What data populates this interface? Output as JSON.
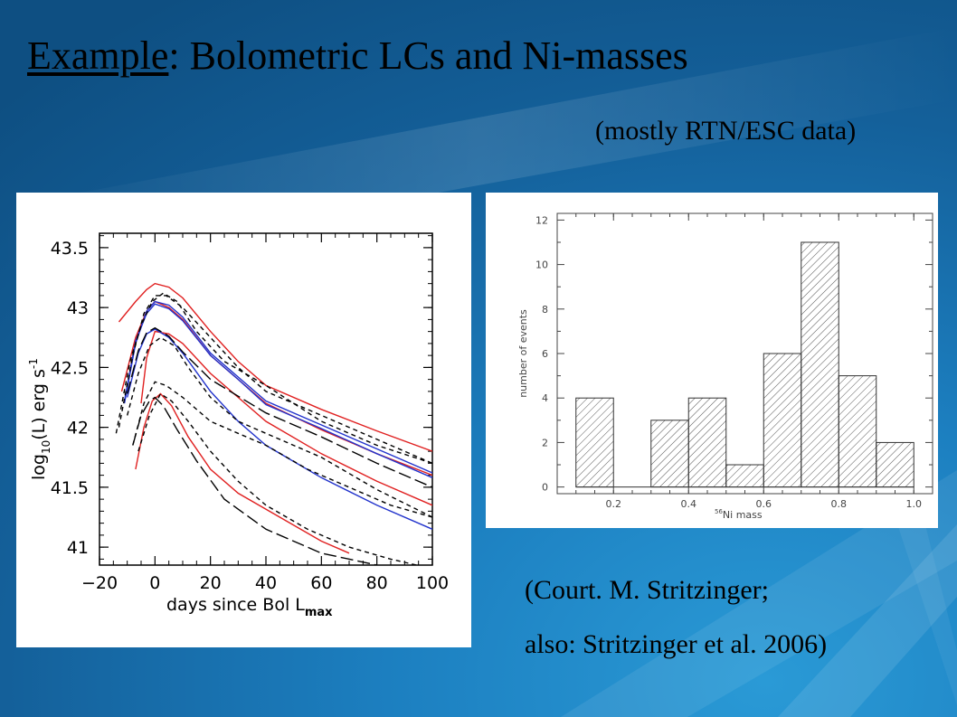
{
  "slide": {
    "title_underlined": "Example",
    "title_rest": ": Bolometric LCs and Ni-masses",
    "subtitle": "(mostly RTN/ESC data)",
    "credit_line1": "(Court. M. Stritzinger;",
    "credit_line2": "also:  Stritzinger  et al. 2006)"
  },
  "colors": {
    "background": "#1c7fc0",
    "red": "#e02020",
    "blue": "#2233cc",
    "black": "#000000"
  },
  "chart_data": [
    {
      "type": "line",
      "xlabel": "days since Bol L",
      "xlabel_sub": "max",
      "ylabel": "log",
      "ylabel_sub": "10",
      "ylabel_rest": "(L)  erg s",
      "ylabel_sup": "-1",
      "xlim": [
        -20,
        100
      ],
      "ylim": [
        40.85,
        43.62
      ],
      "xticks": [
        -20,
        0,
        20,
        40,
        60,
        80,
        100
      ],
      "xtick_labels": [
        "−20",
        "0",
        "20",
        "40",
        "60",
        "80",
        "100"
      ],
      "yticks": [
        41,
        41.5,
        42,
        42.5,
        43,
        43.5
      ],
      "ytick_labels": [
        "41",
        "41.5",
        "42",
        "42.5",
        "43",
        "43.5"
      ],
      "series": [
        {
          "color": "red",
          "dash": "solid",
          "x": [
            -13,
            -7,
            -3,
            0,
            5,
            10,
            20,
            30,
            40,
            60,
            80,
            100
          ],
          "y": [
            42.88,
            43.05,
            43.15,
            43.2,
            43.17,
            43.08,
            42.8,
            42.55,
            42.35,
            42.15,
            41.97,
            41.8
          ]
        },
        {
          "color": "red",
          "dash": "solid",
          "x": [
            -12,
            -7,
            -3,
            0,
            5,
            10,
            20,
            30,
            40,
            60,
            80,
            100
          ],
          "y": [
            42.3,
            42.75,
            42.97,
            43.05,
            43.0,
            42.9,
            42.6,
            42.4,
            42.2,
            41.98,
            41.78,
            41.6
          ]
        },
        {
          "color": "red",
          "dash": "solid",
          "x": [
            -5,
            -3,
            0,
            5,
            10,
            20,
            30,
            40,
            60,
            80,
            100
          ],
          "y": [
            42.2,
            42.58,
            42.8,
            42.78,
            42.7,
            42.45,
            42.25,
            42.05,
            41.78,
            41.55,
            41.35
          ]
        },
        {
          "color": "red",
          "dash": "solid",
          "x": [
            -7,
            -4,
            -1,
            2,
            6,
            12,
            20,
            30,
            45,
            60,
            70
          ],
          "y": [
            41.65,
            42.0,
            42.22,
            42.28,
            42.18,
            41.92,
            41.65,
            41.45,
            41.25,
            41.05,
            40.95
          ]
        },
        {
          "color": "blue",
          "dash": "solid",
          "x": [
            -11,
            -7,
            -3,
            0,
            5,
            10,
            20,
            30,
            40,
            60,
            80,
            100
          ],
          "y": [
            42.2,
            42.7,
            42.97,
            43.05,
            43.02,
            42.92,
            42.62,
            42.42,
            42.22,
            42.02,
            41.82,
            41.62
          ]
        },
        {
          "color": "blue",
          "dash": "solid",
          "x": [
            -11,
            -7,
            -3,
            0,
            5,
            10,
            20,
            30,
            40,
            60,
            80,
            100
          ],
          "y": [
            42.22,
            42.72,
            42.95,
            43.03,
            42.99,
            42.89,
            42.6,
            42.4,
            42.19,
            41.99,
            41.78,
            41.58
          ]
        },
        {
          "color": "blue",
          "dash": "solid",
          "x": [
            -10,
            -6,
            -3,
            0,
            5,
            10,
            20,
            30,
            40,
            60,
            80,
            100
          ],
          "y": [
            42.25,
            42.62,
            42.78,
            42.82,
            42.75,
            42.62,
            42.3,
            42.05,
            41.85,
            41.58,
            41.35,
            41.15
          ]
        },
        {
          "color": "black",
          "dash": "long",
          "x": [
            -10,
            -6,
            -3,
            0,
            5,
            10,
            20,
            30,
            40,
            60,
            80,
            100
          ],
          "y": [
            42.28,
            42.64,
            42.79,
            42.83,
            42.76,
            42.63,
            42.4,
            42.26,
            42.12,
            41.92,
            41.7,
            41.5
          ]
        },
        {
          "color": "black",
          "dash": "long",
          "x": [
            -8,
            -5,
            -2,
            0,
            3,
            8,
            15,
            25,
            40,
            60,
            80
          ],
          "y": [
            41.85,
            42.1,
            42.22,
            42.25,
            42.18,
            41.98,
            41.72,
            41.4,
            41.15,
            40.95,
            40.85
          ]
        },
        {
          "color": "black",
          "dash": "short",
          "x": [
            -14,
            -9,
            -5,
            -1,
            3,
            8,
            15,
            25,
            40,
            60,
            80,
            100
          ],
          "y": [
            41.95,
            42.55,
            42.85,
            43.05,
            43.12,
            43.05,
            42.8,
            42.55,
            42.35,
            42.05,
            41.85,
            41.7
          ]
        },
        {
          "color": "black",
          "dash": "short",
          "x": [
            -13,
            -8,
            -4,
            0,
            4,
            10,
            20,
            30,
            40,
            60,
            80,
            100
          ],
          "y": [
            42.0,
            42.6,
            42.95,
            43.1,
            43.1,
            43.0,
            42.75,
            42.5,
            42.3,
            42.1,
            41.9,
            41.7
          ]
        },
        {
          "color": "black",
          "dash": "short",
          "x": [
            -10,
            -6,
            -2,
            2,
            7,
            12,
            20,
            30,
            40,
            60,
            80,
            100
          ],
          "y": [
            42.1,
            42.45,
            42.68,
            42.75,
            42.68,
            42.5,
            42.25,
            42.05,
            41.95,
            41.75,
            41.48,
            41.25
          ]
        },
        {
          "color": "black",
          "dash": "short",
          "x": [
            -8,
            -4,
            0,
            4,
            10,
            20,
            30,
            40,
            55,
            70,
            85,
            100
          ],
          "y": [
            41.85,
            42.2,
            42.38,
            42.35,
            42.25,
            42.05,
            41.95,
            41.85,
            41.65,
            41.5,
            41.35,
            41.25
          ]
        },
        {
          "color": "black",
          "dash": "short",
          "x": [
            -6,
            -2,
            2,
            6,
            12,
            20,
            30,
            40,
            55,
            70,
            85,
            100
          ],
          "y": [
            41.8,
            42.1,
            42.28,
            42.22,
            42.05,
            41.8,
            41.55,
            41.35,
            41.15,
            41.0,
            40.9,
            40.82
          ]
        }
      ]
    },
    {
      "type": "bar",
      "subtype": "histogram",
      "xlabel": "Ni mass",
      "xlabel_sup": "56",
      "ylabel": "number of events",
      "xlim": [
        0.05,
        1.05
      ],
      "ylim": [
        -0.3,
        12.3
      ],
      "xticks": [
        0.2,
        0.4,
        0.6,
        0.8,
        1.0
      ],
      "xtick_labels": [
        "0.2",
        "0.4",
        "0.6",
        "0.8",
        "1.0"
      ],
      "yticks": [
        0,
        2,
        4,
        6,
        8,
        10,
        12
      ],
      "ytick_labels": [
        "0",
        "2",
        "4",
        "6",
        "8",
        "10",
        "12"
      ],
      "bins": [
        [
          0.1,
          0.2
        ],
        [
          0.2,
          0.3
        ],
        [
          0.3,
          0.4
        ],
        [
          0.4,
          0.5
        ],
        [
          0.5,
          0.6
        ],
        [
          0.6,
          0.7
        ],
        [
          0.7,
          0.8
        ],
        [
          0.8,
          0.9
        ],
        [
          0.9,
          1.0
        ]
      ],
      "values": [
        4,
        0,
        3,
        4,
        1,
        6,
        11,
        5,
        2
      ]
    }
  ]
}
